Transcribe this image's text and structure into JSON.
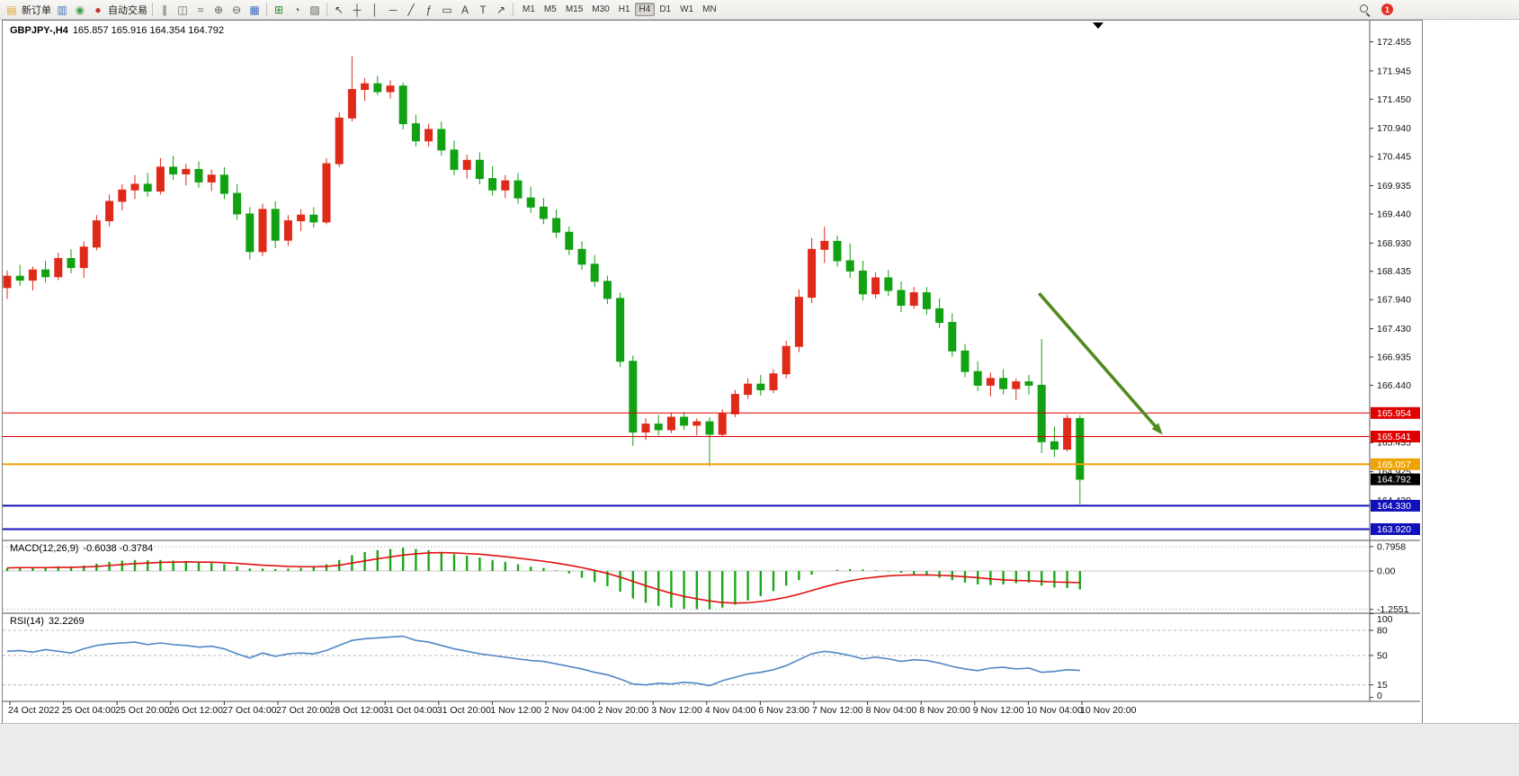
{
  "window": {
    "symbol": "GBPJPY-,H4",
    "ohlc": "165.857 165.916 164.354 164.792"
  },
  "toolbar": {
    "buttons": [
      {
        "n": "new-order-button",
        "g": "▤",
        "c": "#d9a62e",
        "label": "新订单"
      },
      {
        "n": "market-watch-button",
        "g": "▥",
        "c": "#3f6fbf"
      },
      {
        "n": "data-window-button",
        "g": "◉",
        "c": "#3fa04f"
      },
      {
        "n": "auto-trading-button",
        "g": "●",
        "c": "#c03028",
        "label": "自动交易"
      },
      {
        "sep": true
      },
      {
        "n": "bar-chart-button",
        "g": "∥",
        "c": "#606060"
      },
      {
        "n": "candle-chart-button",
        "g": "◫",
        "c": "#606060"
      },
      {
        "n": "line-chart-button",
        "g": "≈",
        "c": "#606060"
      },
      {
        "n": "zoom-in-button",
        "g": "⊕",
        "c": "#606060"
      },
      {
        "n": "zoom-out-button",
        "g": "⊖",
        "c": "#606060"
      },
      {
        "n": "tile-windows-button",
        "g": "▦",
        "c": "#3f6fbf"
      },
      {
        "sep": true
      },
      {
        "n": "new-chart-button",
        "g": "⊞",
        "c": "#2e8b2e"
      },
      {
        "n": "period-clock-button",
        "g": "◔",
        "c": "#606060"
      },
      {
        "n": "template-button",
        "g": "▨",
        "c": "#606060"
      },
      {
        "sep": true
      },
      {
        "n": "cursor-tool-button",
        "g": "↖",
        "c": "#404040"
      },
      {
        "n": "crosshair-tool-button",
        "g": "┼",
        "c": "#404040"
      },
      {
        "n": "vertical-line-tool-button",
        "g": "│",
        "c": "#404040"
      },
      {
        "n": "horizontal-line-tool-button",
        "g": "─",
        "c": "#404040"
      },
      {
        "n": "trendline-tool-button",
        "g": "╱",
        "c": "#404040"
      },
      {
        "n": "fibonacci-tool-button",
        "g": "ƒ",
        "c": "#404040"
      },
      {
        "n": "shapes-tool-button",
        "g": "▭",
        "c": "#404040"
      },
      {
        "n": "text-tool-button",
        "g": "A",
        "c": "#404040"
      },
      {
        "n": "label-tool-button",
        "g": "T",
        "c": "#404040"
      },
      {
        "n": "arrow-tool-button",
        "g": "↗",
        "c": "#404040"
      },
      {
        "sep": true
      }
    ],
    "timeframes": [
      {
        "label": "M1",
        "active": false
      },
      {
        "label": "M5",
        "active": false
      },
      {
        "label": "M15",
        "active": false
      },
      {
        "label": "M30",
        "active": false
      },
      {
        "label": "H1",
        "active": false
      },
      {
        "label": "H4",
        "active": true
      },
      {
        "label": "D1",
        "active": false
      },
      {
        "label": "W1",
        "active": false
      },
      {
        "label": "MN",
        "active": false
      }
    ],
    "notification_badge": "1"
  },
  "chart_data": {
    "type": "candlestick-with-indicators",
    "title": "GBPJPY-,H4 165.857 165.916 164.354 164.792",
    "up_color": "#df2a1a",
    "down_color": "#12a112",
    "price_axis": {
      "ticks": [
        "172.455",
        "171.945",
        "171.450",
        "170.940",
        "170.445",
        "169.935",
        "169.440",
        "168.930",
        "168.435",
        "167.940",
        "167.430",
        "166.935",
        "166.440",
        "165.435",
        "164.925",
        "164.420"
      ]
    },
    "hlines": [
      {
        "v": 165.954,
        "t": "165.954",
        "color": "#e00000",
        "w": 1
      },
      {
        "v": 165.541,
        "t": "165.541",
        "color": "#e00000",
        "w": 1
      },
      {
        "v": 165.057,
        "t": "165.057",
        "color": "#efa300",
        "w": 2
      },
      {
        "v": 164.33,
        "t": "164.330",
        "color": "#1111bb",
        "w": 2
      },
      {
        "v": 163.92,
        "t": "163.920",
        "color": "#1111bb",
        "w": 2
      }
    ],
    "current_price": {
      "v": 164.792,
      "t": "164.792",
      "color": "#000000"
    },
    "arrow": {
      "bar1": 80.8,
      "price1": 168.05,
      "bar2": 90.3,
      "price2": 165.62,
      "color": "#4e8b1f"
    },
    "candles": [
      [
        168.15,
        168.45,
        167.95,
        168.35
      ],
      [
        168.35,
        168.55,
        168.18,
        168.28
      ],
      [
        168.28,
        168.52,
        168.1,
        168.46
      ],
      [
        168.46,
        168.62,
        168.24,
        168.34
      ],
      [
        168.34,
        168.76,
        168.28,
        168.66
      ],
      [
        168.66,
        168.82,
        168.4,
        168.5
      ],
      [
        168.5,
        168.96,
        168.32,
        168.86
      ],
      [
        168.86,
        169.42,
        168.8,
        169.32
      ],
      [
        169.32,
        169.78,
        169.22,
        169.66
      ],
      [
        169.66,
        169.96,
        169.5,
        169.86
      ],
      [
        169.86,
        170.12,
        169.7,
        169.96
      ],
      [
        169.96,
        170.16,
        169.74,
        169.84
      ],
      [
        169.84,
        170.42,
        169.78,
        170.26
      ],
      [
        170.26,
        170.46,
        170.04,
        170.14
      ],
      [
        170.14,
        170.32,
        169.94,
        170.22
      ],
      [
        170.22,
        170.36,
        169.9,
        170.0
      ],
      [
        170.0,
        170.22,
        169.84,
        170.12
      ],
      [
        170.12,
        170.26,
        169.7,
        169.8
      ],
      [
        169.8,
        169.96,
        169.34,
        169.44
      ],
      [
        169.44,
        169.56,
        168.64,
        168.78
      ],
      [
        168.78,
        169.62,
        168.7,
        169.52
      ],
      [
        169.52,
        169.66,
        168.84,
        168.98
      ],
      [
        168.98,
        169.42,
        168.88,
        169.32
      ],
      [
        169.32,
        169.52,
        169.14,
        169.42
      ],
      [
        169.42,
        169.56,
        169.2,
        169.3
      ],
      [
        169.3,
        170.42,
        169.26,
        170.32
      ],
      [
        170.32,
        171.22,
        170.26,
        171.12
      ],
      [
        171.12,
        172.2,
        171.06,
        171.62
      ],
      [
        171.62,
        171.82,
        171.42,
        171.72
      ],
      [
        171.72,
        171.86,
        171.52,
        171.58
      ],
      [
        171.58,
        171.78,
        171.46,
        171.68
      ],
      [
        171.68,
        171.74,
        170.92,
        171.02
      ],
      [
        171.02,
        171.18,
        170.62,
        170.72
      ],
      [
        170.72,
        171.02,
        170.62,
        170.92
      ],
      [
        170.92,
        171.06,
        170.46,
        170.56
      ],
      [
        170.56,
        170.72,
        170.12,
        170.22
      ],
      [
        170.22,
        170.48,
        170.06,
        170.38
      ],
      [
        170.38,
        170.52,
        169.96,
        170.06
      ],
      [
        170.06,
        170.28,
        169.76,
        169.86
      ],
      [
        169.86,
        170.12,
        169.72,
        170.02
      ],
      [
        170.02,
        170.16,
        169.62,
        169.72
      ],
      [
        169.72,
        169.92,
        169.46,
        169.56
      ],
      [
        169.56,
        169.72,
        169.26,
        169.36
      ],
      [
        169.36,
        169.52,
        169.02,
        169.12
      ],
      [
        169.12,
        169.22,
        168.72,
        168.82
      ],
      [
        168.82,
        168.96,
        168.46,
        168.56
      ],
      [
        168.56,
        168.72,
        168.16,
        168.26
      ],
      [
        168.26,
        168.36,
        167.86,
        167.96
      ],
      [
        167.96,
        168.06,
        166.76,
        166.86
      ],
      [
        166.86,
        166.96,
        165.38,
        165.62
      ],
      [
        165.62,
        165.86,
        165.48,
        165.76
      ],
      [
        165.76,
        165.92,
        165.56,
        165.66
      ],
      [
        165.66,
        165.96,
        165.6,
        165.88
      ],
      [
        165.88,
        165.97,
        165.66,
        165.74
      ],
      [
        165.74,
        165.86,
        165.56,
        165.8
      ],
      [
        165.8,
        165.88,
        165.02,
        165.58
      ],
      [
        165.58,
        166.02,
        165.54,
        165.94
      ],
      [
        165.94,
        166.36,
        165.88,
        166.28
      ],
      [
        166.28,
        166.56,
        166.2,
        166.46
      ],
      [
        166.46,
        166.62,
        166.26,
        166.36
      ],
      [
        166.36,
        166.72,
        166.3,
        166.64
      ],
      [
        166.64,
        167.22,
        166.56,
        167.12
      ],
      [
        167.12,
        168.12,
        167.02,
        167.98
      ],
      [
        167.98,
        169.02,
        167.88,
        168.82
      ],
      [
        168.82,
        169.22,
        168.58,
        168.96
      ],
      [
        168.96,
        169.06,
        168.52,
        168.62
      ],
      [
        168.62,
        168.92,
        168.32,
        168.44
      ],
      [
        168.44,
        168.62,
        167.92,
        168.04
      ],
      [
        168.04,
        168.42,
        167.96,
        168.32
      ],
      [
        168.32,
        168.46,
        168.0,
        168.1
      ],
      [
        168.1,
        168.26,
        167.72,
        167.84
      ],
      [
        167.84,
        168.16,
        167.78,
        168.06
      ],
      [
        168.06,
        168.16,
        167.68,
        167.78
      ],
      [
        167.78,
        167.96,
        167.44,
        167.54
      ],
      [
        167.54,
        167.7,
        166.94,
        167.04
      ],
      [
        167.04,
        167.16,
        166.58,
        166.68
      ],
      [
        166.68,
        166.86,
        166.34,
        166.44
      ],
      [
        166.44,
        166.66,
        166.24,
        166.56
      ],
      [
        166.56,
        166.72,
        166.28,
        166.38
      ],
      [
        166.38,
        166.56,
        166.18,
        166.5
      ],
      [
        166.5,
        166.62,
        166.28,
        166.44
      ],
      [
        166.44,
        167.25,
        165.25,
        165.45
      ],
      [
        165.45,
        165.72,
        165.18,
        165.32
      ],
      [
        165.32,
        165.92,
        165.28,
        165.86
      ],
      [
        165.857,
        165.916,
        164.354,
        164.792
      ]
    ],
    "macd": {
      "title": "MACD(12,26,9)",
      "value_text": "-0.6038 -0.3784",
      "hist_color": "#19a819",
      "signal_color": "#e01010",
      "scale_labels": [
        {
          "v": 0.7958,
          "t": "0.7958"
        },
        {
          "v": 0,
          "t": "0.00"
        },
        {
          "v": -1.2551,
          "t": "-1.2551"
        }
      ],
      "hist": [
        0.1,
        0.12,
        0.1,
        0.13,
        0.15,
        0.14,
        0.18,
        0.24,
        0.3,
        0.34,
        0.36,
        0.35,
        0.36,
        0.34,
        0.31,
        0.28,
        0.26,
        0.22,
        0.16,
        0.08,
        0.08,
        0.06,
        0.08,
        0.1,
        0.12,
        0.22,
        0.36,
        0.52,
        0.62,
        0.68,
        0.72,
        0.76,
        0.72,
        0.68,
        0.62,
        0.55,
        0.5,
        0.44,
        0.36,
        0.3,
        0.22,
        0.14,
        0.1,
        0.02,
        -0.08,
        -0.22,
        -0.36,
        -0.5,
        -0.68,
        -0.9,
        -1.04,
        -1.14,
        -1.2,
        -1.24,
        -1.25,
        -1.255,
        -1.2,
        -1.1,
        -0.96,
        -0.82,
        -0.66,
        -0.48,
        -0.3,
        -0.12,
        0.0,
        0.04,
        0.06,
        0.05,
        0.02,
        -0.02,
        -0.06,
        -0.1,
        -0.16,
        -0.22,
        -0.3,
        -0.38,
        -0.44,
        -0.46,
        -0.44,
        -0.4,
        -0.38,
        -0.48,
        -0.54,
        -0.56,
        -0.6038
      ],
      "signal": [
        0.1,
        0.11,
        0.11,
        0.11,
        0.12,
        0.12,
        0.13,
        0.15,
        0.18,
        0.21,
        0.24,
        0.26,
        0.28,
        0.29,
        0.3,
        0.29,
        0.29,
        0.27,
        0.25,
        0.22,
        0.19,
        0.17,
        0.15,
        0.14,
        0.14,
        0.15,
        0.19,
        0.26,
        0.33,
        0.4,
        0.46,
        0.52,
        0.56,
        0.59,
        0.6,
        0.59,
        0.57,
        0.55,
        0.51,
        0.47,
        0.42,
        0.37,
        0.32,
        0.26,
        0.19,
        0.11,
        0.02,
        -0.08,
        -0.2,
        -0.34,
        -0.48,
        -0.61,
        -0.73,
        -0.83,
        -0.91,
        -0.98,
        -1.03,
        -1.05,
        -1.04,
        -1.0,
        -0.94,
        -0.86,
        -0.76,
        -0.64,
        -0.52,
        -0.41,
        -0.32,
        -0.25,
        -0.2,
        -0.16,
        -0.14,
        -0.13,
        -0.13,
        -0.14,
        -0.16,
        -0.19,
        -0.22,
        -0.26,
        -0.29,
        -0.31,
        -0.32,
        -0.34,
        -0.36,
        -0.37,
        -0.3784
      ]
    },
    "rsi": {
      "title": "RSI(14)",
      "value_text": "32.2269",
      "line_color": "#4f86c6",
      "levels": [
        {
          "v": 100,
          "t": "100",
          "dashed": false
        },
        {
          "v": 80,
          "t": "80",
          "dashed": true
        },
        {
          "v": 50,
          "t": "50",
          "dashed": true
        },
        {
          "v": 15,
          "t": "15",
          "dashed": true
        },
        {
          "v": 0,
          "t": "0",
          "dashed": false
        }
      ],
      "values": [
        55,
        56,
        54,
        57,
        55,
        53,
        58,
        62,
        64,
        65,
        66,
        63,
        65,
        63,
        62,
        60,
        61,
        58,
        52,
        47,
        53,
        49,
        52,
        53,
        52,
        56,
        62,
        68,
        70,
        71,
        72,
        73,
        68,
        66,
        62,
        58,
        55,
        52,
        50,
        48,
        46,
        44,
        43,
        40,
        37,
        34,
        30,
        27,
        22,
        16,
        15,
        17,
        16,
        18,
        17,
        14,
        20,
        24,
        28,
        30,
        33,
        38,
        45,
        52,
        55,
        53,
        50,
        46,
        48,
        46,
        43,
        45,
        44,
        41,
        37,
        34,
        32,
        35,
        36,
        34,
        35,
        30,
        31,
        33,
        32.2269
      ]
    },
    "time_axis": {
      "labels": [
        "24 Oct 2022",
        "25 Oct 04:00",
        "25 Oct 20:00",
        "26 Oct 12:00",
        "27 Oct 04:00",
        "27 Oct 20:00",
        "28 Oct 12:00",
        "31 Oct 04:00",
        "31 Oct 20:00",
        "1 Nov 12:00",
        "2 Nov 04:00",
        "2 Nov 20:00",
        "3 Nov 12:00",
        "4 Nov 04:00",
        "6 Nov 23:00",
        "7 Nov 12:00",
        "8 Nov 04:00",
        "8 Nov 20:00",
        "9 Nov 12:00",
        "10 Nov 04:00",
        "10 Nov 20:00"
      ]
    }
  }
}
